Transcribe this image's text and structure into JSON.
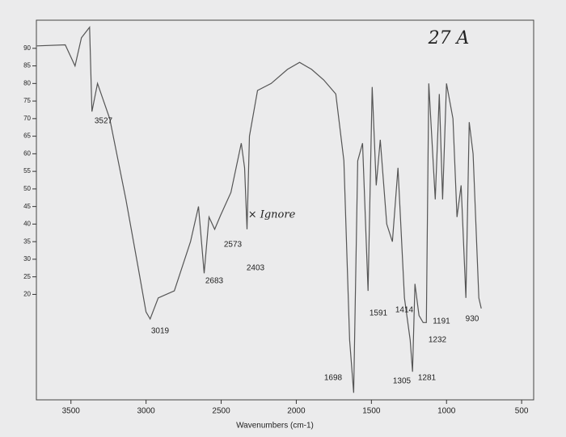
{
  "chart_data": {
    "type": "line",
    "x_label": "Wavenumbers (cm-1)",
    "xlim": [
      3730,
      420
    ],
    "xticks": [
      3500,
      3000,
      2500,
      2000,
      1500,
      1000,
      500
    ],
    "ylim": [
      -10,
      98
    ],
    "yticks": [
      20,
      25,
      30,
      35,
      40,
      45,
      50,
      55,
      60,
      65,
      70,
      75,
      80,
      85,
      90
    ],
    "series": [
      {
        "color": "#555555",
        "x": [
          3726,
          3538,
          3473,
          3430,
          3376,
          3360,
          3323,
          3242,
          3134,
          3054,
          3000,
          2973,
          2919,
          2812,
          2704,
          2651,
          2613,
          2581,
          2543,
          2505,
          2435,
          2366,
          2344,
          2328,
          2312,
          2258,
          2167,
          2059,
          1978,
          1898,
          1817,
          1737,
          1683,
          1645,
          1618,
          1591,
          1559,
          1522,
          1495,
          1468,
          1441,
          1398,
          1360,
          1323,
          1280,
          1242,
          1226,
          1210,
          1183,
          1156,
          1134,
          1118,
          1075,
          1048,
          1026,
          1000,
          957,
          930,
          903,
          871,
          849,
          823,
          785,
          769
        ],
        "values": [
          90.7,
          91,
          85,
          93,
          96,
          72,
          80,
          70,
          47,
          28,
          15,
          13,
          19,
          21,
          35,
          45,
          26,
          42,
          38.5,
          42.4,
          49,
          63,
          56,
          38.5,
          65,
          78,
          80,
          84,
          86,
          84,
          81,
          77,
          58,
          7,
          -8,
          58,
          63,
          21,
          79,
          51,
          64,
          40,
          35,
          56,
          19,
          7,
          -2,
          23,
          14,
          12,
          12,
          80,
          47,
          77,
          47,
          80,
          70,
          42,
          51,
          19,
          69,
          60,
          19,
          16
        ]
      }
    ],
    "annotations": [
      "3527",
      "3019",
      "2683",
      "2573",
      "2403",
      "1698",
      "1591",
      "1414",
      "1305",
      "1281",
      "1232",
      "1191",
      "930",
      "27 A",
      "× Ignore"
    ]
  }
}
